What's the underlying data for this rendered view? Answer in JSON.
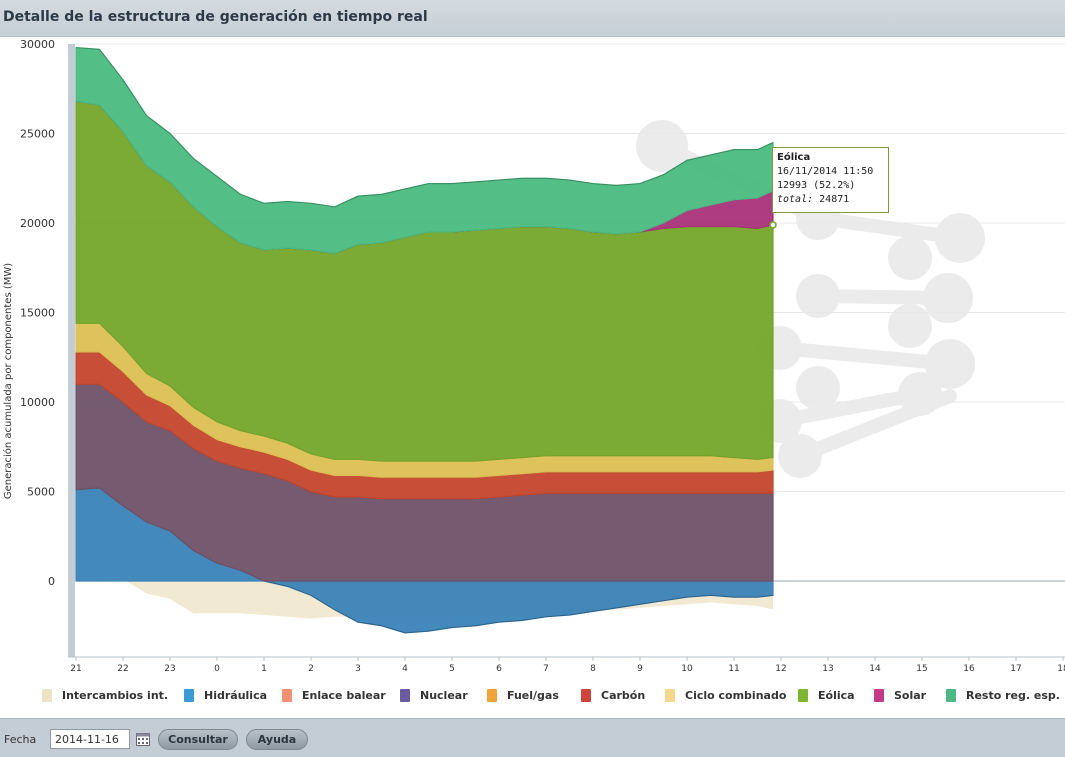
{
  "header": {
    "title": "Detalle de la estructura de generación en tiempo real"
  },
  "chart_data": {
    "type": "area",
    "ylabel": "Generación acumulada por componentes (MW)",
    "xlabel": "",
    "ylim": [
      -4200,
      30000
    ],
    "yticks": [
      0,
      5000,
      10000,
      15000,
      20000,
      25000,
      30000
    ],
    "ytick_labels": [
      "0",
      "5000",
      "10000",
      "15000",
      "20000",
      "25000",
      "30000"
    ],
    "xlim": [
      21,
      42
    ],
    "xticks": [
      21,
      22,
      23,
      24,
      25,
      26,
      27,
      28,
      29,
      30,
      31,
      32,
      33,
      34,
      35,
      36,
      37,
      38,
      39,
      40,
      41,
      42
    ],
    "xtick_labels": [
      "21",
      "22",
      "23",
      "0",
      "1",
      "2",
      "3",
      "4",
      "5",
      "6",
      "7",
      "8",
      "9",
      "10",
      "11",
      "12",
      "13",
      "14",
      "15",
      "16",
      "17",
      "18"
    ],
    "grid": true,
    "legend_position": "bottom",
    "x": [
      21.0,
      21.5,
      22.0,
      22.5,
      23.0,
      23.5,
      24.0,
      24.5,
      25.0,
      25.5,
      26.0,
      26.5,
      27.0,
      27.5,
      28.0,
      28.5,
      29.0,
      29.5,
      30.0,
      30.5,
      31.0,
      31.5,
      32.0,
      32.5,
      33.0,
      33.5,
      34.0,
      34.5,
      35.0,
      35.5,
      35.83
    ],
    "series": [
      {
        "name": "Hidráulica",
        "color": "#3a83b8",
        "values": [
          5100,
          5200,
          4200,
          3300,
          2800,
          1700,
          1000,
          600,
          0,
          -300,
          -800,
          -1600,
          -2300,
          -2500,
          -2900,
          -2800,
          -2600,
          -2500,
          -2300,
          -2200,
          -2000,
          -1900,
          -1700,
          -1500,
          -1300,
          -1100,
          -900,
          -800,
          -900,
          -900,
          -800
        ]
      },
      {
        "name": "Nuclear",
        "color": "#6e5168",
        "values": [
          5900,
          5800,
          5800,
          5600,
          5600,
          5700,
          5700,
          5700,
          6000,
          5600,
          5000,
          4700,
          4700,
          4600,
          4600,
          4600,
          4600,
          4600,
          4700,
          4800,
          4900,
          4900,
          4900,
          4900,
          4900,
          4900,
          4900,
          4900,
          4900,
          4900,
          4900
        ]
      },
      {
        "name": "Carbón",
        "color": "#c4452c",
        "values": [
          1800,
          1800,
          1700,
          1500,
          1400,
          1300,
          1200,
          1200,
          1200,
          1200,
          1200,
          1200,
          1200,
          1200,
          1200,
          1200,
          1200,
          1200,
          1200,
          1200,
          1200,
          1200,
          1200,
          1200,
          1200,
          1200,
          1200,
          1200,
          1200,
          1200,
          1300
        ]
      },
      {
        "name": "Ciclo combinado",
        "color": "#dcbf53",
        "values": [
          1600,
          1600,
          1400,
          1200,
          1100,
          1000,
          1000,
          900,
          900,
          900,
          900,
          900,
          900,
          900,
          900,
          900,
          900,
          900,
          900,
          900,
          900,
          900,
          900,
          900,
          900,
          900,
          900,
          900,
          800,
          700,
          700
        ]
      },
      {
        "name": "Eólica",
        "color": "#74a52a",
        "values": [
          12400,
          12200,
          12000,
          11600,
          11400,
          11200,
          10900,
          10500,
          10400,
          10900,
          11400,
          11500,
          12000,
          12200,
          12500,
          12800,
          12800,
          12900,
          12900,
          12900,
          12800,
          12700,
          12500,
          12400,
          12500,
          12700,
          12800,
          12800,
          12900,
          12900,
          12993
        ]
      },
      {
        "name": "Solar",
        "color": "#a93179",
        "values": [
          0,
          0,
          0,
          0,
          0,
          0,
          0,
          0,
          0,
          0,
          0,
          0,
          0,
          0,
          0,
          0,
          0,
          0,
          0,
          0,
          0,
          0,
          0,
          0,
          0,
          300,
          900,
          1200,
          1500,
          1700,
          1900
        ]
      },
      {
        "name": "Resto reg. esp.",
        "color": "#4aba80",
        "values": [
          3000,
          3100,
          2900,
          2800,
          2700,
          2700,
          2800,
          2700,
          2600,
          2600,
          2600,
          2600,
          2700,
          2700,
          2700,
          2700,
          2700,
          2700,
          2700,
          2700,
          2700,
          2700,
          2700,
          2700,
          2700,
          2700,
          2800,
          2800,
          2800,
          2700,
          2700
        ]
      }
    ],
    "negative_series": [
      {
        "name": "Intercambios int.",
        "color": "#ede3c6",
        "values": [
          0,
          100,
          100,
          -700,
          -1000,
          -1800,
          -1800,
          -1800,
          -1900,
          -2000,
          -2100,
          -2000,
          -2000,
          -2000,
          -2000,
          -2000,
          -2000,
          -1900,
          -1900,
          -1900,
          -1900,
          -1800,
          -1700,
          -1600,
          -1500,
          -1400,
          -1300,
          -1200,
          -1300,
          -1400,
          -1600
        ]
      }
    ],
    "legend": [
      {
        "name": "Intercambios int.",
        "color": "#ede3c6"
      },
      {
        "name": "Hidráulica",
        "color": "#3a9ad5"
      },
      {
        "name": "Enlace balear",
        "color": "#f19272"
      },
      {
        "name": "Nuclear",
        "color": "#6a5aa0"
      },
      {
        "name": "Fuel/gas",
        "color": "#f0a43a"
      },
      {
        "name": "Carbón",
        "color": "#d0433a"
      },
      {
        "name": "Ciclo combinado",
        "color": "#f5d78e"
      },
      {
        "name": "Eólica",
        "color": "#7cb632"
      },
      {
        "name": "Solar",
        "color": "#c53a88"
      },
      {
        "name": "Resto reg. esp.",
        "color": "#4cb883"
      }
    ],
    "tooltip": {
      "title": "Eólica",
      "datetime": "16/11/2014 11:50",
      "value": "12993 (52.2%)",
      "total_label": "total:",
      "total_value": "24871"
    }
  },
  "footer": {
    "fecha_label": "Fecha",
    "date_value": "2014-11-16",
    "consultar_label": "Consultar",
    "ayuda_label": "Ayuda"
  }
}
